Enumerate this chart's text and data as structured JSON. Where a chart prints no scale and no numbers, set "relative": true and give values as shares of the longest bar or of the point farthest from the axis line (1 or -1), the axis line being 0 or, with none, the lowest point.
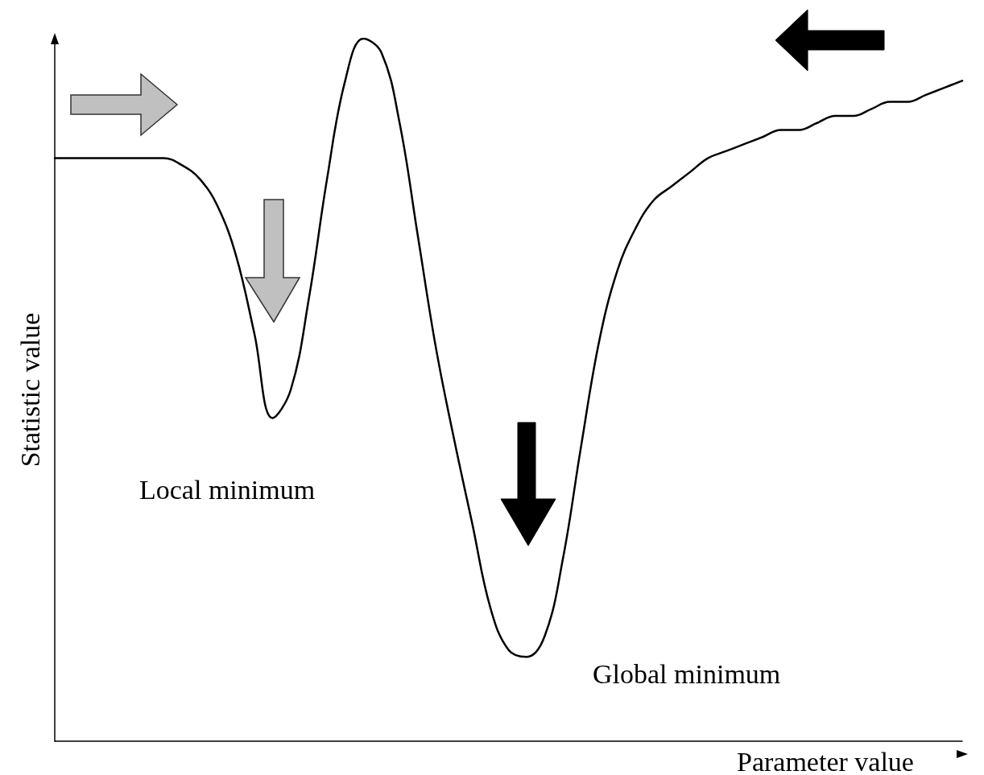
{
  "chart_data": {
    "type": "line",
    "relative": true,
    "xlabel": "Parameter value",
    "ylabel": "Statistic value",
    "categories": [
      null,
      null,
      null,
      null,
      null,
      null,
      null,
      null,
      null,
      null,
      null,
      null,
      null,
      null,
      null,
      null,
      null,
      null,
      null,
      null,
      null,
      null,
      null,
      null,
      null,
      null,
      null,
      null,
      null,
      null,
      null,
      null,
      null,
      null,
      null,
      null,
      null,
      null,
      null,
      null,
      null,
      null,
      null,
      null,
      null,
      null,
      null,
      null,
      null,
      null,
      null
    ],
    "series": [
      {
        "color": "#000000",
        "values": [
          0.83,
          0.83,
          0.83,
          0.83,
          0.83,
          0.83,
          0.83,
          0.82,
          0.8,
          0.76,
          0.69,
          0.58,
          0.46,
          0.5,
          0.63,
          0.8,
          0.94,
          1,
          0.98,
          0.88,
          0.72,
          0.56,
          0.43,
          0.31,
          0.19,
          0.13,
          0.12,
          0.15,
          0.26,
          0.42,
          0.57,
          0.67,
          0.73,
          0.77,
          0.79,
          0.81,
          0.83,
          0.84,
          0.85,
          0.86,
          0.87,
          0.87,
          0.88,
          0.89,
          0.89,
          0.9,
          0.91,
          0.91,
          0.92,
          0.93,
          0.94
        ]
      }
    ],
    "annotations": [
      "Local minimum",
      "Global minimum"
    ],
    "grid": false,
    "marker": "none",
    "line_style": "solid"
  }
}
